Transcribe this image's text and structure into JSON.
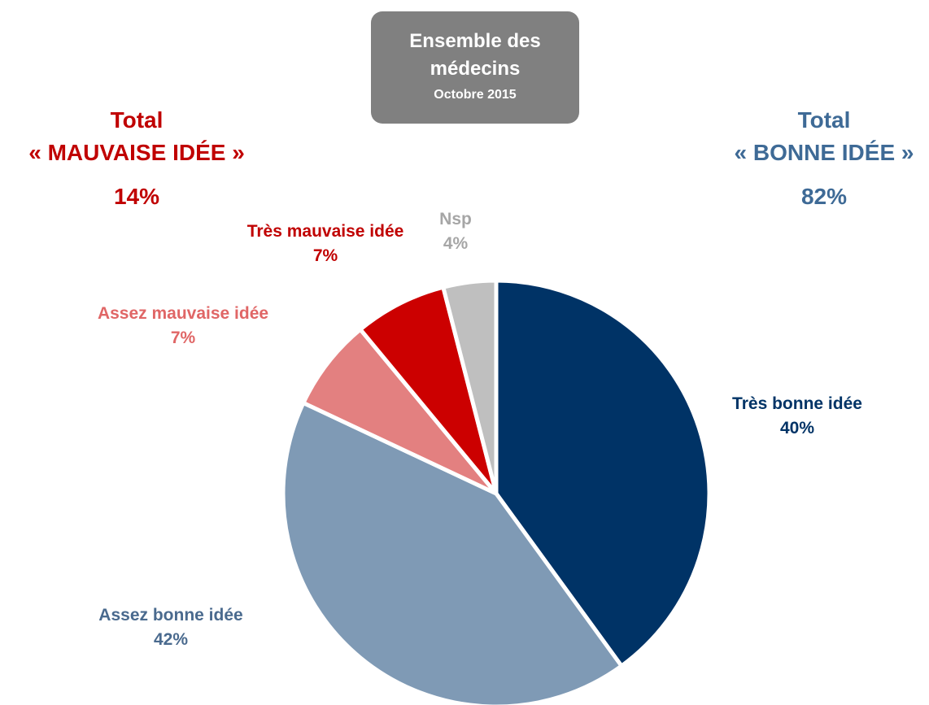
{
  "chart_data": {
    "type": "pie",
    "title": "Ensemble des médecins",
    "subtitle": "Octobre 2015",
    "categories": [
      "Très bonne idée",
      "Assez bonne idée",
      "Assez mauvaise idée",
      "Très mauvaise idée",
      "Nsp"
    ],
    "values": [
      40,
      42,
      7,
      7,
      4
    ],
    "value_labels": [
      "40%",
      "42%",
      "7%",
      "7%",
      "4%"
    ],
    "colors": [
      "#003366",
      "#7f9ab5",
      "#e38080",
      "#cc0000",
      "#bfbfbf"
    ],
    "label_colors": [
      "#003366",
      "#4a6a8e",
      "#e06666",
      "#c00000",
      "#a6a6a6"
    ],
    "annotations": [
      {
        "title": "Total",
        "text": "« MAUVAISE IDÉE »",
        "label": "14%",
        "color": "#c00000"
      },
      {
        "title": "Total",
        "text": "« BONNE IDÉE »",
        "label": "82%",
        "color": "#3e6a96"
      }
    ]
  }
}
